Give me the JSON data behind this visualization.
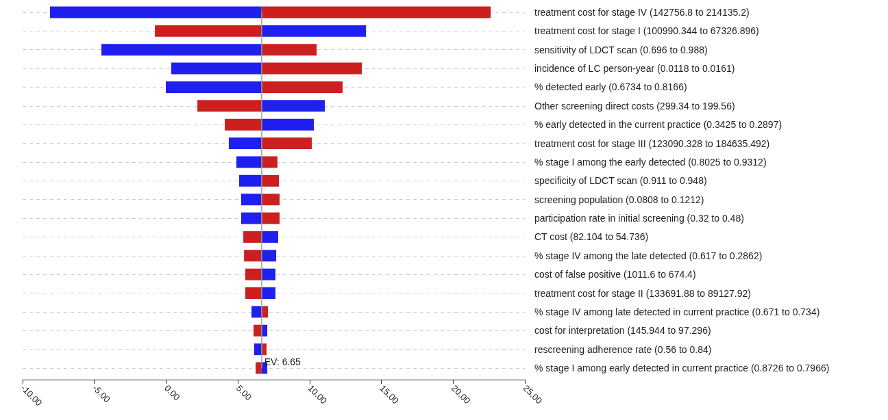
{
  "chart_data": {
    "type": "bar",
    "orientation": "horizontal",
    "categories": [
      "treatment cost for stage IV (142756.8 to 214135.2)",
      "treatment cost for stage I (100990.344 to 67326.896)",
      "sensitivity of LDCT scan (0.696 to 0.988)",
      "incidence of LC person-year (0.0118 to 0.0161)",
      "% detected early (0.6734 to 0.8166)",
      "Other screening direct costs (299.34 to 199.56)",
      "% early detected in the current practice (0.3425 to 0.2897)",
      "treatment cost for stage III (123090.328 to 184635.492)",
      "% stage I among the early detected (0.8025 to 0.9312)",
      "specificity of LDCT scan (0.911 to 0.948)",
      "screening population (0.0808 to 0.1212)",
      "participation rate in initial screening (0.32 to 0.48)",
      "CT cost (82.104 to 54.736)",
      "% stage IV among the late detected (0.617 to 0.2862)",
      "cost of false positive (1011.6 to 674.4)",
      "treatment cost for stage II (133691.88 to 89127.92)",
      "% stage IV among late detected in current practice (0.671 to 0.734)",
      "cost for interpretation (145.944 to 97.296)",
      "rescreening adherence rate (0.56 to 0.84)",
      "% stage I among early detected in current practice (0.8726 to 0.7966)"
    ],
    "series": [
      {
        "colors": [
          "#1f1ff0",
          "#cc1f1f",
          "#1f1ff0",
          "#1f1ff0",
          "#1f1ff0",
          "#cc1f1f",
          "#cc1f1f",
          "#1f1ff0",
          "#1f1ff0",
          "#1f1ff0",
          "#1f1ff0",
          "#1f1ff0",
          "#cc1f1f",
          "#cc1f1f",
          "#cc1f1f",
          "#cc1f1f",
          "#1f1ff0",
          "#cc1f1f",
          "#1f1ff0",
          "#cc1f1f"
        ],
        "base": [
          -8.09,
          -0.78,
          -4.51,
          0.36,
          -0.02,
          2.18,
          4.09,
          4.37,
          4.9,
          5.09,
          5.23,
          5.23,
          5.38,
          5.43,
          5.52,
          5.52,
          5.95,
          6.09,
          6.14,
          6.24
        ],
        "values": [
          14.74,
          7.43,
          11.16,
          6.29,
          6.67,
          4.47,
          2.56,
          2.28,
          1.75,
          1.56,
          1.42,
          1.42,
          1.27,
          1.22,
          1.13,
          1.13,
          0.7,
          0.56,
          0.51,
          0.41
        ]
      },
      {
        "colors": [
          "#cc1f1f",
          "#1f1ff0",
          "#cc1f1f",
          "#cc1f1f",
          "#cc1f1f",
          "#1f1ff0",
          "#1f1ff0",
          "#cc1f1f",
          "#cc1f1f",
          "#cc1f1f",
          "#cc1f1f",
          "#cc1f1f",
          "#1f1ff0",
          "#1f1ff0",
          "#1f1ff0",
          "#1f1ff0",
          "#cc1f1f",
          "#1f1ff0",
          "#cc1f1f",
          "#1f1ff0"
        ],
        "base": [
          6.65,
          6.65,
          6.65,
          6.65,
          6.65,
          6.65,
          6.65,
          6.65,
          6.65,
          6.65,
          6.65,
          6.65,
          6.65,
          6.65,
          6.65,
          6.65,
          6.65,
          6.65,
          6.65,
          6.65
        ],
        "values": [
          15.97,
          7.28,
          3.84,
          6.99,
          5.65,
          4.41,
          3.65,
          3.5,
          1.11,
          1.21,
          1.26,
          1.26,
          1.16,
          1.02,
          0.97,
          0.97,
          0.45,
          0.4,
          0.35,
          0.4
        ]
      }
    ],
    "xlim": [
      -10,
      25
    ],
    "xticks": [
      {
        "value": -10,
        "label": "-10.00"
      },
      {
        "value": -5,
        "label": "-5.00"
      },
      {
        "value": 0,
        "label": "0.00"
      },
      {
        "value": 5,
        "label": "5.00"
      },
      {
        "value": 10,
        "label": "10.00"
      },
      {
        "value": 15,
        "label": "15.00"
      },
      {
        "value": 20,
        "label": "20.00"
      },
      {
        "value": 25,
        "label": "25.00"
      }
    ],
    "ref_lines": [
      {
        "axis": "x",
        "value": 6.65,
        "label": "EV: 6.65",
        "color": "#999999"
      }
    ],
    "grid": "y"
  }
}
